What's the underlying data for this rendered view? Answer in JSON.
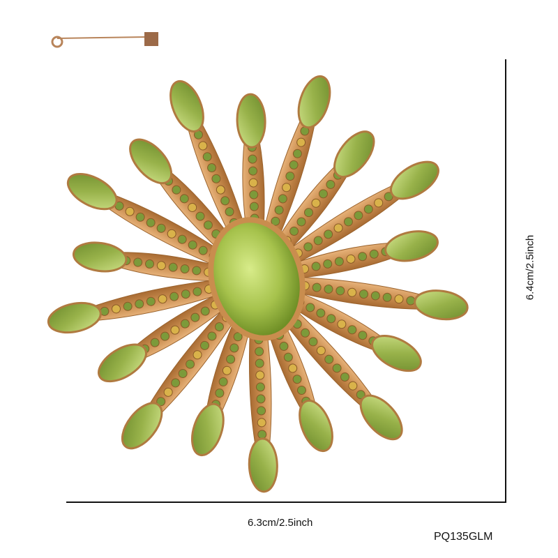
{
  "product": {
    "width_label": "6.3cm/2.5inch",
    "height_label": "6.4cm/2.5inch",
    "sku": "PQ135GLM"
  },
  "colors": {
    "gold": "#c98d4e",
    "stone_green": "#a8c25a",
    "rhinestone_green": "#7c9a3a",
    "ab_crystal": "#d9b24a",
    "dimension_line": "#111111"
  }
}
